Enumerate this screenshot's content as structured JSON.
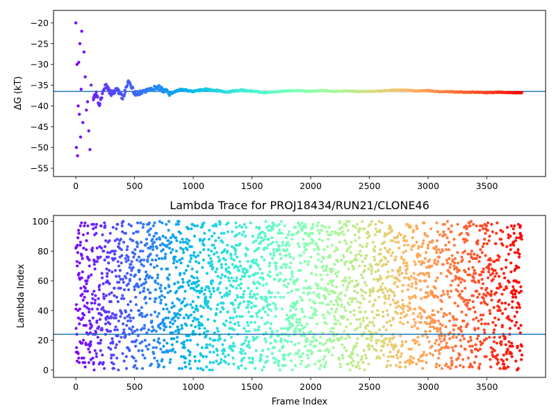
{
  "chart_data": [
    {
      "type": "scatter",
      "title": "",
      "xlabel": "",
      "ylabel": "ΔG (kT)",
      "xlim": [
        -190,
        4000
      ],
      "ylim": [
        -57,
        -17
      ],
      "xticks": [
        0,
        500,
        1000,
        1500,
        2000,
        2500,
        3000,
        3500
      ],
      "yticks": [
        -55,
        -50,
        -45,
        -40,
        -35,
        -30,
        -25,
        -20
      ],
      "hline": -36.5,
      "colormap": "rainbow",
      "color_by": "frame index",
      "series": [
        {
          "x": [
            0,
            5,
            10,
            15,
            20,
            25,
            30,
            35,
            40,
            45,
            50,
            60,
            70,
            80,
            90,
            100,
            110,
            120,
            130,
            150,
            175,
            200,
            250,
            300,
            350,
            400,
            450,
            500,
            600,
            700,
            800,
            900,
            1000,
            1100,
            1200,
            1300,
            1400,
            1500,
            1600,
            1700,
            1800,
            1900,
            2000,
            2100,
            2200,
            2300,
            2400,
            2500,
            2600,
            2700,
            2800,
            2900,
            3000,
            3100,
            3200,
            3300,
            3400,
            3500,
            3600,
            3700,
            3800
          ],
          "y": [
            -20,
            -50,
            -30,
            -52,
            -40,
            -29.5,
            -42,
            -25,
            -47.5,
            -36,
            -22,
            -44,
            -27,
            -33,
            -41,
            -39,
            -46,
            -50.5,
            -35,
            -38,
            -37,
            -40,
            -35,
            -37,
            -36,
            -38,
            -34,
            -37,
            -36.5,
            -35.5,
            -37,
            -36,
            -36.5,
            -36,
            -36.3,
            -36.6,
            -36.2,
            -36.4,
            -36.8,
            -36.6,
            -36.4,
            -36.3,
            -36.5,
            -36.3,
            -36.5,
            -36.4,
            -36.5,
            -36.5,
            -36.4,
            -36.2,
            -36.2,
            -36.4,
            -36.3,
            -36.6,
            -36.6,
            -36.7,
            -36.7,
            -36.8,
            -36.7,
            -36.8,
            -36.8
          ]
        }
      ]
    },
    {
      "type": "scatter",
      "title": "Lambda Trace for PROJ18434/RUN21/CLONE46",
      "xlabel": "Frame Index",
      "ylabel": "Lambda Index",
      "xlim": [
        -190,
        4000
      ],
      "ylim": [
        -5,
        104
      ],
      "xticks": [
        0,
        500,
        1000,
        1500,
        2000,
        2500,
        3000,
        3500
      ],
      "yticks": [
        0,
        20,
        40,
        60,
        80,
        100
      ],
      "hline": 24,
      "colormap": "rainbow",
      "color_by": "frame index",
      "frame_count": 3800,
      "lambda_range": [
        0,
        100
      ]
    }
  ]
}
